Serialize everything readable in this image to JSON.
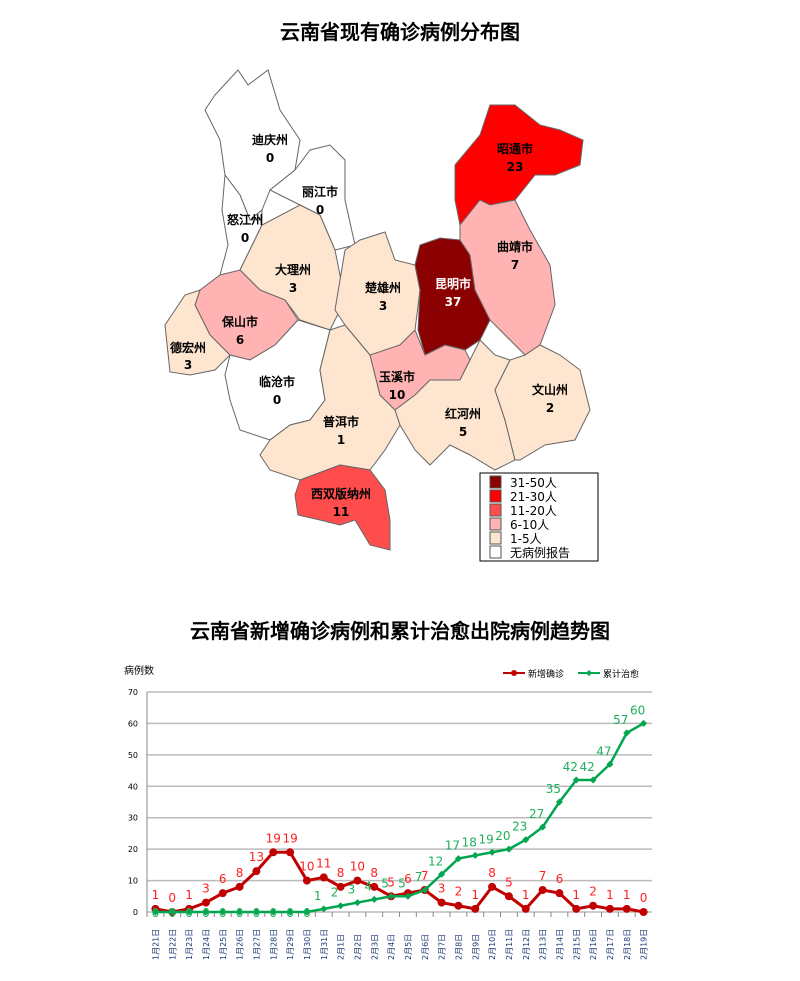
{
  "map": {
    "title": "云南省现有确诊病例分布图",
    "regions": [
      {
        "name": "迪庆州",
        "value": "0"
      },
      {
        "name": "丽江市",
        "value": "0"
      },
      {
        "name": "怒江州",
        "value": "0"
      },
      {
        "name": "大理州",
        "value": "3"
      },
      {
        "name": "保山市",
        "value": "6"
      },
      {
        "name": "德宏州",
        "value": "3"
      },
      {
        "name": "临沧市",
        "value": "0"
      },
      {
        "name": "普洱市",
        "value": "1"
      },
      {
        "name": "西双版纳州",
        "value": "11"
      },
      {
        "name": "楚雄州",
        "value": "3"
      },
      {
        "name": "昆明市",
        "value": "37"
      },
      {
        "name": "昭通市",
        "value": "23"
      },
      {
        "name": "曲靖市",
        "value": "7"
      },
      {
        "name": "玉溪市",
        "value": "10"
      },
      {
        "name": "红河州",
        "value": "5"
      },
      {
        "name": "文山州",
        "value": "2"
      }
    ],
    "legend": [
      {
        "label": "31-50人",
        "color": "#8B0000",
        "min": 31,
        "max": 50
      },
      {
        "label": "21-30人",
        "color": "#FF0000",
        "min": 21,
        "max": 30
      },
      {
        "label": "11-20人",
        "color": "#FF4D4D",
        "min": 11,
        "max": 20
      },
      {
        "label": "6-10人",
        "color": "#FFB3B3",
        "min": 6,
        "max": 10
      },
      {
        "label": "1-5人",
        "color": "#FDE5CF",
        "min": 1,
        "max": 5
      },
      {
        "label": "无病例报告",
        "color": "#FFFFFF",
        "min": 0,
        "max": 0
      }
    ]
  },
  "chart_data": {
    "type": "line",
    "title": "云南省新增确诊病例和累计治愈出院病例趋势图",
    "ylabel": "病例数",
    "ylim": [
      0,
      70
    ],
    "yticks": [
      "0",
      "10",
      "20",
      "30",
      "40",
      "50",
      "60",
      "70"
    ],
    "grid": true,
    "legend_position": "top-right",
    "categories": [
      "1月21日",
      "1月22日",
      "1月23日",
      "1月24日",
      "1月25日",
      "1月26日",
      "1月27日",
      "1月28日",
      "1月29日",
      "1月30日",
      "1月31日",
      "2月1日",
      "2月2日",
      "2月3日",
      "2月4日",
      "2月5日",
      "2月6日",
      "2月7日",
      "2月8日",
      "2月9日",
      "2月10日",
      "2月11日",
      "2月12日",
      "2月13日",
      "2月14日",
      "2月15日",
      "2月16日",
      "2月17日",
      "2月18日",
      "2月19日"
    ],
    "series": [
      {
        "name": "新增确诊",
        "color": "#C00000",
        "values": [
          1,
          0,
          1,
          3,
          6,
          8,
          13,
          19,
          19,
          10,
          11,
          8,
          10,
          8,
          5,
          6,
          7,
          3,
          2,
          1,
          8,
          5,
          1,
          7,
          6,
          1,
          2,
          1,
          1,
          0
        ]
      },
      {
        "name": "累计治愈",
        "color": "#00A550",
        "values": [
          0,
          0,
          0,
          0,
          0,
          0,
          0,
          0,
          0,
          0,
          1,
          2,
          3,
          4,
          5,
          5,
          7,
          12,
          17,
          18,
          19,
          20,
          23,
          27,
          35,
          42,
          42,
          47,
          57,
          60
        ]
      }
    ]
  }
}
